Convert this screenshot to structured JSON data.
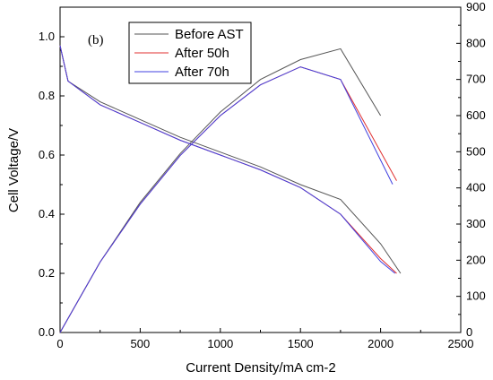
{
  "chart_data": {
    "type": "line",
    "panel_label": "(b)",
    "xlabel": "Current Density/mA cm-2",
    "ylabel": "Cell Voltage/V",
    "xlim": [
      0,
      2500
    ],
    "ylim": [
      0.0,
      1.1
    ],
    "y2lim": [
      0,
      900
    ],
    "xticks": [
      0,
      500,
      1000,
      1500,
      2000,
      2500
    ],
    "yticks": [
      0.0,
      0.2,
      0.4,
      0.6,
      0.8,
      1.0
    ],
    "y2ticks": [
      0,
      100,
      200,
      300,
      400,
      500,
      600,
      700,
      800,
      900
    ],
    "legend_position": "top-left",
    "series": [
      {
        "name": "Before AST",
        "color": "#555555",
        "voltage": {
          "x": [
            0,
            50,
            250,
            500,
            750,
            1000,
            1250,
            1500,
            1750,
            2000,
            2125
          ],
          "y": [
            0.97,
            0.85,
            0.78,
            0.72,
            0.66,
            0.61,
            0.56,
            0.5,
            0.45,
            0.3,
            0.2
          ]
        },
        "power": {
          "x": [
            0,
            250,
            500,
            750,
            1000,
            1250,
            1500,
            1750,
            2000
          ],
          "y": [
            0,
            195,
            360,
            495,
            610,
            700,
            755,
            785,
            600
          ]
        }
      },
      {
        "name": "After 50h",
        "color": "#e03030",
        "voltage": {
          "x": [
            0,
            50,
            250,
            500,
            750,
            1000,
            1250,
            1500,
            1750,
            2000,
            2100
          ],
          "y": [
            0.97,
            0.85,
            0.77,
            0.71,
            0.65,
            0.6,
            0.55,
            0.49,
            0.4,
            0.25,
            0.2
          ]
        },
        "power": {
          "x": [
            0,
            250,
            500,
            750,
            1000,
            1250,
            1500,
            1750,
            2100
          ],
          "y": [
            0,
            195,
            355,
            490,
            600,
            685,
            735,
            700,
            420
          ]
        }
      },
      {
        "name": "After 70h",
        "color": "#4040e0",
        "voltage": {
          "x": [
            0,
            50,
            250,
            500,
            750,
            1000,
            1250,
            1500,
            1750,
            2000,
            2090
          ],
          "y": [
            0.97,
            0.85,
            0.77,
            0.71,
            0.65,
            0.6,
            0.55,
            0.49,
            0.4,
            0.24,
            0.2
          ]
        },
        "power": {
          "x": [
            0,
            250,
            500,
            750,
            1000,
            1250,
            1500,
            1750,
            2075
          ],
          "y": [
            0,
            195,
            355,
            490,
            600,
            685,
            735,
            700,
            410
          ]
        }
      }
    ]
  }
}
